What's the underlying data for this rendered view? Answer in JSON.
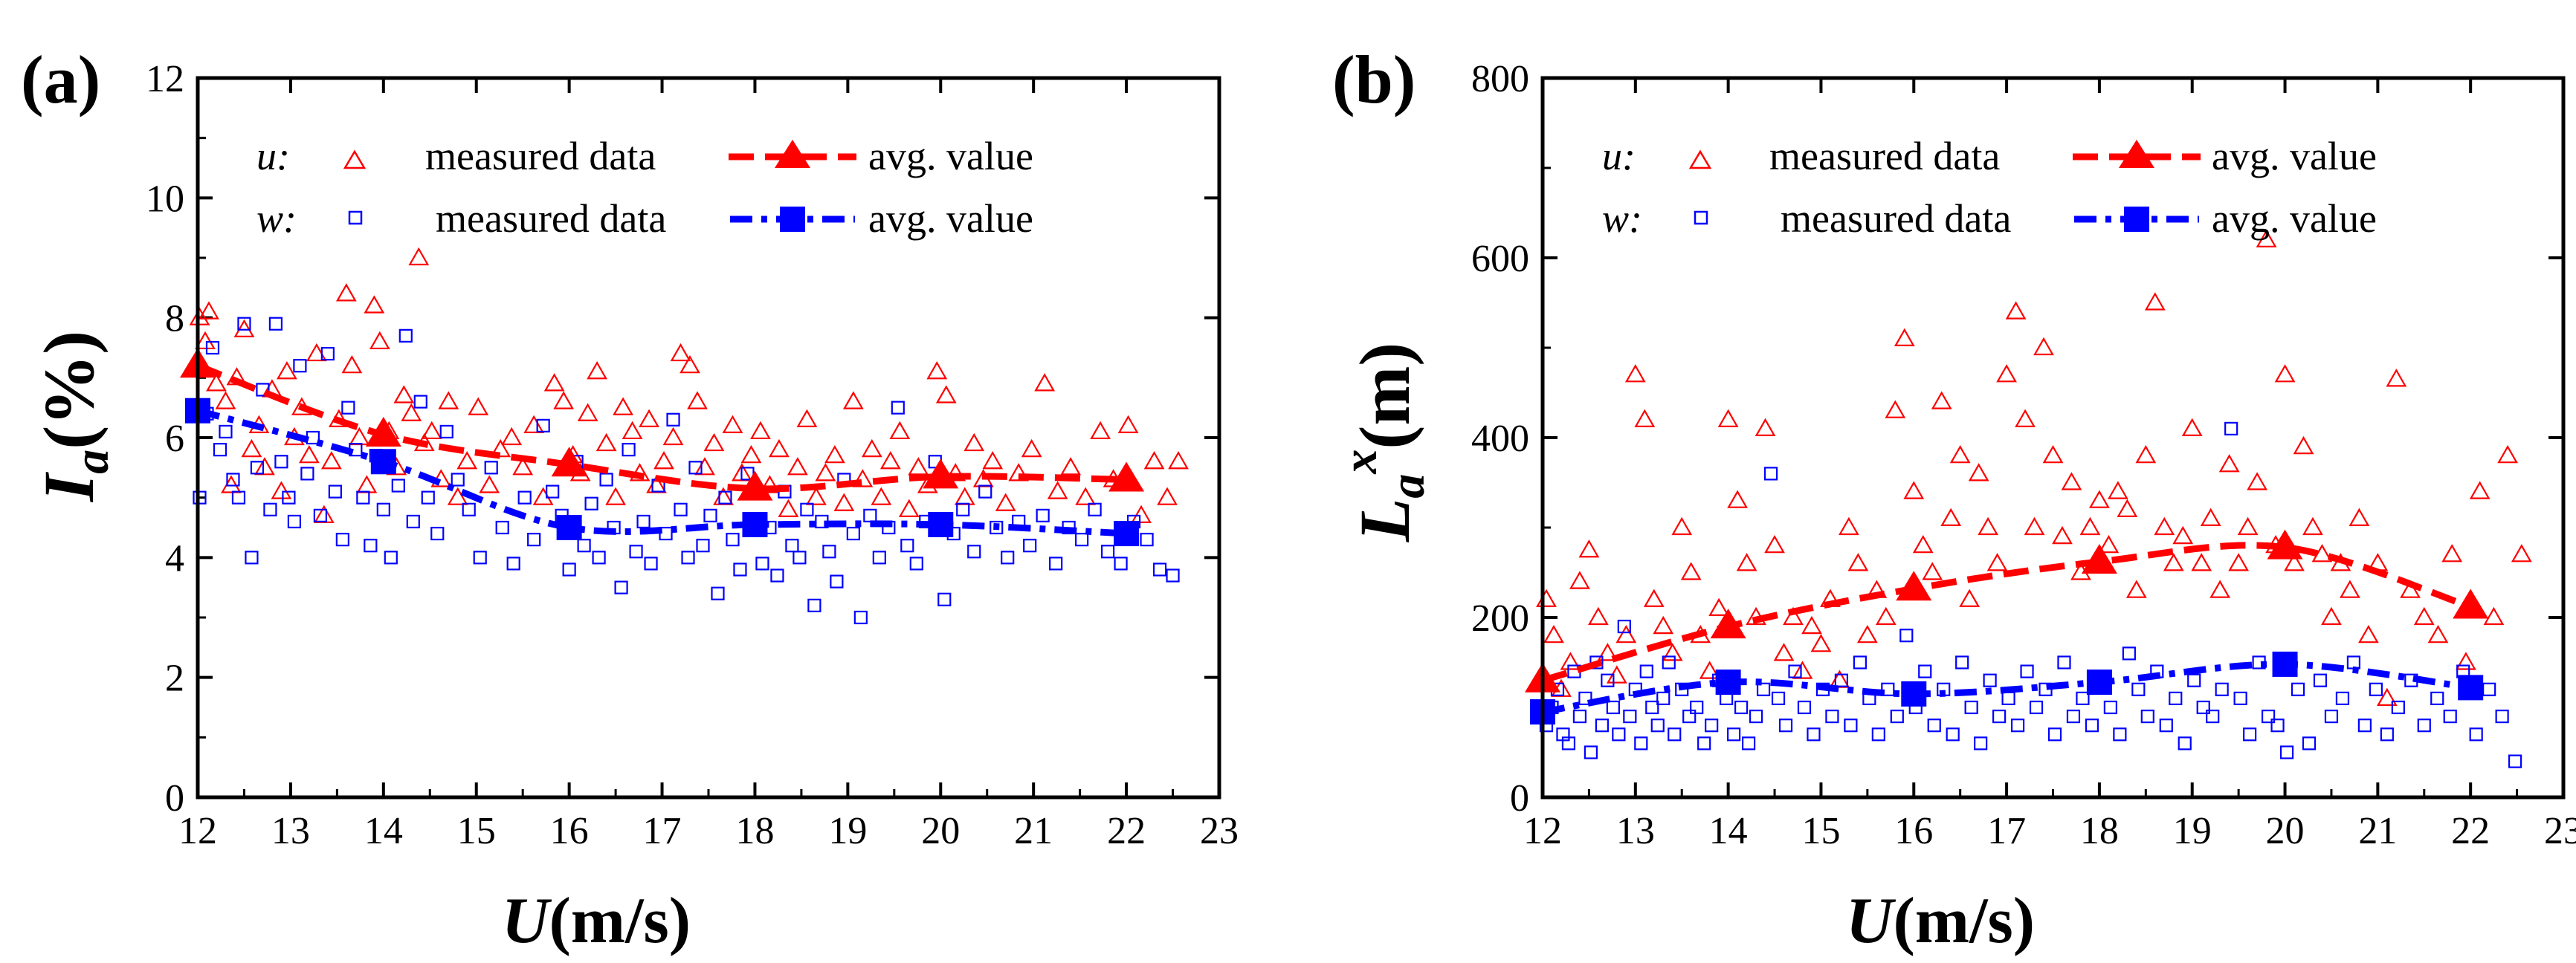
{
  "colors": {
    "u": "#ff0000",
    "w": "#0000ff",
    "axis": "#000000"
  },
  "chart_data": [
    {
      "panel": "(a)",
      "type": "scatter",
      "xlabel": "U(m/s)",
      "xlabel_parts": [
        "U",
        "(m/s)"
      ],
      "ylabel": "I_a(%)",
      "ylabel_parts": [
        "I",
        "a",
        "(%)"
      ],
      "xlim": [
        12,
        23
      ],
      "ylim": [
        0,
        12
      ],
      "xticks": [
        "12",
        "13",
        "14",
        "15",
        "16",
        "17",
        "18",
        "19",
        "20",
        "21",
        "22",
        "23"
      ],
      "yticks": [
        "0",
        "2",
        "4",
        "6",
        "8",
        "10",
        "12"
      ],
      "legend": [
        {
          "var": "u:",
          "measured": "measured data",
          "avg": "avg. value"
        },
        {
          "var": "w:",
          "measured": "measured data",
          "avg": "avg. value"
        }
      ],
      "series": [
        {
          "name": "u avg. value",
          "component": "u",
          "kind": "avg",
          "x": [
            12,
            14,
            16,
            18,
            20,
            22
          ],
          "y": [
            7.2,
            6.05,
            5.55,
            5.15,
            5.35,
            5.3
          ]
        },
        {
          "name": "w avg. value",
          "component": "w",
          "kind": "avg",
          "x": [
            12,
            14,
            16,
            18,
            20,
            22
          ],
          "y": [
            6.45,
            5.6,
            4.5,
            4.55,
            4.55,
            4.4
          ]
        },
        {
          "name": "u measured data",
          "component": "u",
          "kind": "measured",
          "x": [
            12.02,
            12.08,
            12.12,
            12.2,
            12.3,
            12.36,
            12.42,
            12.5,
            12.58,
            12.66,
            12.72,
            12.8,
            12.9,
            12.96,
            13.04,
            13.12,
            13.2,
            13.28,
            13.36,
            13.44,
            13.52,
            13.6,
            13.66,
            13.74,
            13.82,
            13.9,
            13.96,
            14.06,
            14.14,
            14.22,
            14.3,
            14.38,
            14.44,
            14.52,
            14.62,
            14.7,
            14.8,
            14.9,
            15.02,
            15.14,
            15.26,
            15.38,
            15.5,
            15.62,
            15.72,
            15.84,
            15.94,
            16.04,
            16.12,
            16.2,
            16.3,
            16.4,
            16.5,
            16.58,
            16.68,
            16.76,
            16.86,
            16.94,
            17.02,
            17.12,
            17.2,
            17.3,
            17.38,
            17.46,
            17.56,
            17.66,
            17.76,
            17.86,
            17.96,
            18.06,
            18.16,
            18.26,
            18.36,
            18.46,
            18.56,
            18.66,
            18.76,
            18.86,
            18.96,
            19.06,
            19.16,
            19.26,
            19.36,
            19.46,
            19.56,
            19.66,
            19.76,
            19.86,
            19.96,
            20.06,
            20.16,
            20.26,
            20.36,
            20.46,
            20.56,
            20.7,
            20.84,
            20.98,
            21.12,
            21.26,
            21.4,
            21.56,
            21.72,
            21.86,
            22.02,
            22.16,
            22.3,
            22.44,
            22.56
          ],
          "y": [
            8.0,
            7.6,
            8.1,
            6.9,
            6.6,
            5.2,
            7.0,
            7.8,
            5.8,
            6.2,
            5.5,
            6.8,
            5.1,
            7.1,
            6.0,
            6.5,
            5.7,
            7.4,
            4.7,
            5.6,
            6.3,
            8.4,
            7.2,
            6.0,
            5.2,
            8.2,
            7.6,
            6.1,
            5.5,
            6.7,
            6.4,
            9.0,
            5.9,
            6.1,
            5.3,
            6.6,
            5.0,
            5.6,
            6.5,
            5.2,
            5.8,
            6.0,
            5.5,
            6.2,
            5.0,
            6.9,
            6.6,
            5.7,
            5.4,
            6.4,
            7.1,
            5.9,
            5.0,
            6.5,
            6.1,
            5.4,
            6.3,
            5.2,
            5.6,
            6.0,
            7.4,
            7.2,
            6.6,
            5.5,
            5.9,
            5.0,
            6.2,
            5.4,
            5.7,
            6.1,
            5.2,
            5.8,
            4.8,
            5.5,
            6.3,
            5.0,
            5.4,
            5.7,
            4.9,
            6.6,
            5.3,
            5.8,
            5.0,
            5.6,
            6.1,
            4.8,
            5.5,
            5.2,
            7.1,
            6.7,
            5.4,
            5.0,
            5.9,
            5.3,
            5.6,
            4.9,
            5.4,
            5.8,
            6.9,
            5.1,
            5.5,
            5.0,
            6.1,
            5.3,
            6.2,
            4.7,
            5.6,
            5.0,
            5.6
          ]
        },
        {
          "name": "w measured data",
          "component": "w",
          "kind": "measured",
          "x": [
            12.02,
            12.1,
            12.16,
            12.24,
            12.3,
            12.38,
            12.44,
            12.5,
            12.58,
            12.64,
            12.7,
            12.78,
            12.84,
            12.9,
            12.98,
            13.04,
            13.1,
            13.18,
            13.24,
            13.32,
            13.4,
            13.48,
            13.56,
            13.62,
            13.7,
            13.78,
            13.86,
            13.92,
            14.0,
            14.08,
            14.16,
            14.24,
            14.32,
            14.4,
            14.48,
            14.58,
            14.68,
            14.8,
            14.92,
            15.04,
            15.16,
            15.28,
            15.4,
            15.52,
            15.62,
            15.72,
            15.82,
            15.92,
            16.0,
            16.08,
            16.16,
            16.24,
            16.32,
            16.4,
            16.48,
            16.56,
            16.64,
            16.72,
            16.8,
            16.88,
            16.96,
            17.04,
            17.12,
            17.2,
            17.28,
            17.36,
            17.44,
            17.52,
            17.6,
            17.68,
            17.76,
            17.84,
            17.92,
            18.0,
            18.08,
            18.16,
            18.24,
            18.32,
            18.4,
            18.48,
            18.56,
            18.64,
            18.72,
            18.8,
            18.88,
            18.96,
            19.06,
            19.14,
            19.24,
            19.34,
            19.44,
            19.54,
            19.64,
            19.74,
            19.84,
            19.94,
            20.04,
            20.14,
            20.24,
            20.36,
            20.48,
            20.6,
            20.72,
            20.84,
            20.96,
            21.1,
            21.24,
            21.38,
            21.52,
            21.66,
            21.8,
            21.94,
            22.08,
            22.22,
            22.36,
            22.5
          ],
          "y": [
            5.0,
            6.4,
            7.5,
            5.8,
            6.1,
            5.3,
            5.0,
            7.9,
            4.0,
            5.5,
            6.8,
            4.8,
            7.9,
            5.6,
            5.0,
            4.6,
            7.2,
            5.4,
            6.0,
            4.7,
            7.4,
            5.1,
            4.3,
            6.5,
            5.8,
            5.0,
            4.2,
            5.7,
            4.8,
            4.0,
            5.2,
            7.7,
            4.6,
            6.6,
            5.0,
            4.4,
            6.1,
            5.3,
            4.8,
            4.0,
            5.5,
            4.5,
            3.9,
            5.0,
            4.3,
            6.2,
            5.1,
            4.7,
            3.8,
            5.6,
            4.2,
            4.9,
            4.0,
            5.3,
            4.5,
            3.5,
            5.8,
            4.1,
            4.6,
            3.9,
            5.2,
            4.4,
            6.3,
            4.8,
            4.0,
            5.5,
            4.2,
            4.7,
            3.4,
            5.0,
            4.3,
            3.8,
            5.4,
            4.6,
            3.9,
            4.5,
            3.7,
            5.1,
            4.2,
            4.0,
            4.8,
            3.2,
            4.6,
            4.1,
            3.6,
            5.3,
            4.4,
            3.0,
            4.7,
            4.0,
            4.5,
            6.5,
            4.2,
            3.9,
            4.6,
            5.6,
            3.3,
            4.4,
            4.8,
            4.1,
            5.1,
            4.5,
            4.0,
            4.6,
            4.2,
            4.7,
            3.9,
            4.5,
            4.3,
            4.8,
            4.1,
            3.9,
            4.6,
            4.3,
            3.8,
            3.7
          ]
        }
      ]
    },
    {
      "panel": "(b)",
      "type": "scatter",
      "xlabel": "U(m/s)",
      "xlabel_parts": [
        "U",
        "(m/s)"
      ],
      "ylabel": "L_a^x(m)",
      "ylabel_parts": [
        "L",
        "a",
        "x",
        "(m)"
      ],
      "xlim": [
        12,
        23
      ],
      "ylim": [
        0,
        800
      ],
      "xticks": [
        "12",
        "13",
        "14",
        "15",
        "16",
        "17",
        "18",
        "19",
        "20",
        "21",
        "22",
        "23"
      ],
      "yticks": [
        "0",
        "200",
        "400",
        "600",
        "800"
      ],
      "legend": [
        {
          "var": "u:",
          "measured": "measured data",
          "avg": "avg. value"
        },
        {
          "var": "w:",
          "measured": "measured data",
          "avg": "avg. value"
        }
      ],
      "series": [
        {
          "name": "u avg. value",
          "component": "u",
          "kind": "avg",
          "x": [
            12,
            14,
            16,
            18,
            20,
            22
          ],
          "y": [
            130,
            190,
            232,
            262,
            278,
            212
          ]
        },
        {
          "name": "w avg. value",
          "component": "w",
          "kind": "avg",
          "x": [
            12,
            14,
            16,
            18,
            20,
            22
          ],
          "y": [
            95,
            128,
            115,
            128,
            148,
            122
          ]
        },
        {
          "name": "u measured data",
          "component": "u",
          "kind": "measured",
          "x": [
            12.04,
            12.12,
            12.2,
            12.3,
            12.4,
            12.5,
            12.6,
            12.7,
            12.8,
            12.9,
            13.0,
            13.1,
            13.2,
            13.3,
            13.4,
            13.5,
            13.6,
            13.7,
            13.8,
            13.9,
            14.0,
            14.1,
            14.2,
            14.3,
            14.4,
            14.5,
            14.6,
            14.7,
            14.8,
            14.9,
            15.0,
            15.1,
            15.2,
            15.3,
            15.4,
            15.5,
            15.6,
            15.7,
            15.8,
            15.9,
            16.0,
            16.1,
            16.2,
            16.3,
            16.4,
            16.5,
            16.6,
            16.7,
            16.8,
            16.9,
            17.0,
            17.1,
            17.2,
            17.3,
            17.4,
            17.5,
            17.6,
            17.7,
            17.8,
            17.9,
            18.0,
            18.1,
            18.2,
            18.3,
            18.4,
            18.5,
            18.6,
            18.7,
            18.8,
            18.9,
            19.0,
            19.1,
            19.2,
            19.3,
            19.4,
            19.5,
            19.6,
            19.7,
            19.8,
            19.9,
            20.0,
            20.1,
            20.2,
            20.3,
            20.4,
            20.5,
            20.6,
            20.7,
            20.8,
            20.9,
            21.0,
            21.1,
            21.2,
            21.35,
            21.5,
            21.65,
            21.8,
            21.95,
            22.1,
            22.25,
            22.4,
            22.55
          ],
          "y": [
            220,
            180,
            120,
            150,
            240,
            275,
            200,
            160,
            135,
            180,
            470,
            420,
            220,
            190,
            160,
            300,
            250,
            180,
            140,
            210,
            420,
            330,
            260,
            200,
            410,
            280,
            160,
            200,
            140,
            190,
            170,
            220,
            130,
            300,
            260,
            180,
            230,
            200,
            430,
            510,
            340,
            280,
            250,
            440,
            310,
            380,
            220,
            360,
            300,
            260,
            470,
            540,
            420,
            300,
            500,
            380,
            290,
            350,
            250,
            300,
            330,
            280,
            340,
            320,
            230,
            380,
            550,
            300,
            260,
            290,
            410,
            260,
            310,
            230,
            370,
            260,
            300,
            350,
            620,
            280,
            470,
            260,
            390,
            300,
            270,
            200,
            260,
            230,
            310,
            180,
            260,
            110,
            465,
            230,
            200,
            180,
            270,
            150,
            340,
            200,
            380,
            270
          ]
        },
        {
          "name": "w measured data",
          "component": "w",
          "kind": "measured",
          "x": [
            12.04,
            12.1,
            12.16,
            12.22,
            12.28,
            12.34,
            12.4,
            12.46,
            12.52,
            12.58,
            12.64,
            12.7,
            12.76,
            12.82,
            12.88,
            12.94,
            13.0,
            13.06,
            13.12,
            13.18,
            13.24,
            13.3,
            13.36,
            13.42,
            13.5,
            13.58,
            13.66,
            13.74,
            13.82,
            13.9,
            13.98,
            14.06,
            14.14,
            14.22,
            14.3,
            14.38,
            14.46,
            14.54,
            14.62,
            14.72,
            14.82,
            14.92,
            15.02,
            15.12,
            15.22,
            15.32,
            15.42,
            15.52,
            15.62,
            15.72,
            15.82,
            15.92,
            16.02,
            16.12,
            16.22,
            16.32,
            16.42,
            16.52,
            16.62,
            16.72,
            16.82,
            16.92,
            17.02,
            17.12,
            17.22,
            17.32,
            17.42,
            17.52,
            17.62,
            17.72,
            17.82,
            17.92,
            18.02,
            18.12,
            18.22,
            18.32,
            18.42,
            18.52,
            18.62,
            18.72,
            18.82,
            18.92,
            19.02,
            19.12,
            19.22,
            19.32,
            19.42,
            19.52,
            19.62,
            19.72,
            19.82,
            19.92,
            20.02,
            20.14,
            20.26,
            20.38,
            20.5,
            20.62,
            20.74,
            20.86,
            20.98,
            21.1,
            21.22,
            21.36,
            21.5,
            21.64,
            21.78,
            21.92,
            22.06,
            22.2,
            22.34,
            22.48
          ],
          "y": [
            80,
            100,
            120,
            70,
            60,
            140,
            90,
            110,
            50,
            150,
            80,
            130,
            100,
            70,
            190,
            90,
            120,
            60,
            140,
            100,
            80,
            110,
            150,
            70,
            120,
            90,
            100,
            60,
            80,
            130,
            110,
            70,
            100,
            60,
            90,
            120,
            360,
            110,
            80,
            140,
            100,
            70,
            120,
            90,
            130,
            80,
            150,
            110,
            70,
            120,
            90,
            180,
            100,
            140,
            80,
            120,
            70,
            150,
            100,
            60,
            130,
            90,
            110,
            80,
            140,
            100,
            120,
            70,
            150,
            90,
            110,
            80,
            130,
            100,
            70,
            160,
            120,
            90,
            140,
            80,
            110,
            60,
            130,
            100,
            90,
            120,
            410,
            110,
            70,
            150,
            90,
            80,
            50,
            120,
            60,
            130,
            90,
            110,
            150,
            80,
            120,
            70,
            100,
            130,
            80,
            110,
            90,
            140,
            70,
            120,
            90,
            40
          ]
        }
      ]
    }
  ]
}
